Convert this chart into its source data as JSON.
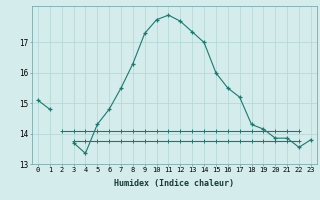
{
  "xlabel": "Humidex (Indice chaleur)",
  "x": [
    0,
    1,
    2,
    3,
    4,
    5,
    6,
    7,
    8,
    9,
    10,
    11,
    12,
    13,
    14,
    15,
    16,
    17,
    18,
    19,
    20,
    21,
    22,
    23
  ],
  "line1": [
    15.1,
    14.8,
    null,
    null,
    null,
    null,
    null,
    null,
    null,
    null,
    null,
    null,
    null,
    null,
    null,
    null,
    null,
    null,
    null,
    null,
    null,
    null,
    null,
    null
  ],
  "line2": [
    null,
    null,
    null,
    13.7,
    13.35,
    14.3,
    14.8,
    15.5,
    16.3,
    17.3,
    17.75,
    17.9,
    17.7,
    17.35,
    17.0,
    16.0,
    15.5,
    15.2,
    14.3,
    14.15,
    13.85,
    13.85,
    13.55,
    13.8
  ],
  "line3": [
    null,
    null,
    14.1,
    14.1,
    14.1,
    14.1,
    14.1,
    14.1,
    14.1,
    14.1,
    14.1,
    14.1,
    14.1,
    14.1,
    14.1,
    14.1,
    14.1,
    14.1,
    14.1,
    14.1,
    14.1,
    14.1,
    14.1,
    null
  ],
  "line4": [
    null,
    null,
    null,
    13.75,
    13.75,
    13.75,
    13.75,
    13.75,
    13.75,
    13.75,
    13.75,
    13.75,
    13.75,
    13.75,
    13.75,
    13.75,
    13.75,
    13.75,
    13.75,
    13.75,
    13.75,
    13.75,
    13.75,
    null
  ],
  "line_color": "#1a7a6e",
  "bg_color": "#d4ecec",
  "grid_color": "#b8d8d8",
  "ylim": [
    13.0,
    18.2
  ],
  "yticks": [
    13,
    14,
    15,
    16,
    17
  ],
  "xticks": [
    0,
    1,
    2,
    3,
    4,
    5,
    6,
    7,
    8,
    9,
    10,
    11,
    12,
    13,
    14,
    15,
    16,
    17,
    18,
    19,
    20,
    21,
    22,
    23
  ]
}
